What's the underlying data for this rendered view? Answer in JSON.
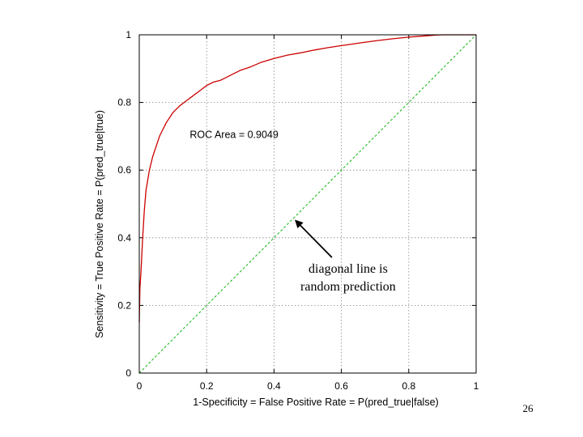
{
  "chart_data": {
    "type": "line",
    "xlabel": "1-Specificity = False Positive Rate = P(pred_true|false)",
    "ylabel": "Sensitivity = True Positive Rate = P(pred_true|true)",
    "xlim": [
      0,
      1
    ],
    "ylim": [
      0,
      1
    ],
    "x_ticks": [
      "0",
      "0.2",
      "0.4",
      "0.6",
      "0.8",
      "1"
    ],
    "y_ticks": [
      "0",
      "0.2",
      "0.4",
      "0.6",
      "0.8",
      "1"
    ],
    "grid": true,
    "series": [
      {
        "color": "#cc0000",
        "style": "solid",
        "x": [
          0,
          0.002,
          0.005,
          0.01,
          0.015,
          0.02,
          0.03,
          0.04,
          0.05,
          0.06,
          0.07,
          0.08,
          0.1,
          0.12,
          0.14,
          0.16,
          0.18,
          0.2,
          0.22,
          0.24,
          0.26,
          0.28,
          0.3,
          0.33,
          0.36,
          0.4,
          0.44,
          0.48,
          0.52,
          0.56,
          0.6,
          0.65,
          0.7,
          0.75,
          0.8,
          0.85,
          0.88,
          0.9,
          1.0
        ],
        "y": [
          0.15,
          0.25,
          0.3,
          0.4,
          0.48,
          0.54,
          0.6,
          0.64,
          0.67,
          0.7,
          0.72,
          0.74,
          0.77,
          0.79,
          0.805,
          0.82,
          0.835,
          0.85,
          0.86,
          0.865,
          0.875,
          0.885,
          0.895,
          0.905,
          0.918,
          0.93,
          0.94,
          0.947,
          0.955,
          0.962,
          0.968,
          0.975,
          0.982,
          0.988,
          0.993,
          0.997,
          0.999,
          1.0,
          1.0
        ]
      },
      {
        "color": "#22bb22",
        "style": "dashed",
        "x": [
          0,
          1
        ],
        "y": [
          0,
          1
        ]
      }
    ],
    "annotations": [
      {
        "text": "ROC Area = 0.9049",
        "x": 0.15,
        "y": 0.695
      }
    ],
    "callout": {
      "lines": [
        "diagonal line is",
        "random prediction"
      ],
      "x": 0.62,
      "y": 0.27,
      "arrow_to": {
        "x": 0.465,
        "y": 0.45
      }
    },
    "colors": {
      "frame": "#000000",
      "grid": "#888888"
    }
  },
  "slide": {
    "number": "26"
  }
}
